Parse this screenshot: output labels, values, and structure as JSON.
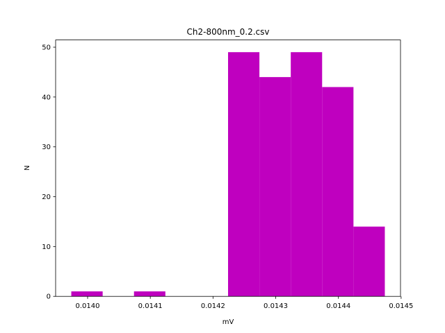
{
  "chart_data": {
    "type": "histogram",
    "title": "Ch2-800nm_0.2.csv",
    "x_label": "mV",
    "y_label": "N",
    "bins": [
      0.013974,
      0.014024,
      0.014074,
      0.014124,
      0.014174,
      0.014224,
      0.014274,
      0.014324,
      0.014374,
      0.014424,
      0.014474
    ],
    "values": [
      1,
      0,
      1,
      0,
      0,
      49,
      44,
      49,
      42,
      14
    ],
    "color": "#bf00bf",
    "xlim": [
      0.013949,
      0.014499
    ],
    "xticks": [
      {
        "value": 0.014,
        "label": "0.0140"
      },
      {
        "value": 0.0141,
        "label": "0.0141"
      },
      {
        "value": 0.0142,
        "label": "0.0142"
      },
      {
        "value": 0.0143,
        "label": "0.0143"
      },
      {
        "value": 0.0144,
        "label": "0.0144"
      },
      {
        "value": 0.0145,
        "label": "0.0145"
      }
    ],
    "ylim": [
      0,
      51.45
    ],
    "yticks": [
      0,
      10,
      20,
      30,
      40,
      50
    ]
  }
}
